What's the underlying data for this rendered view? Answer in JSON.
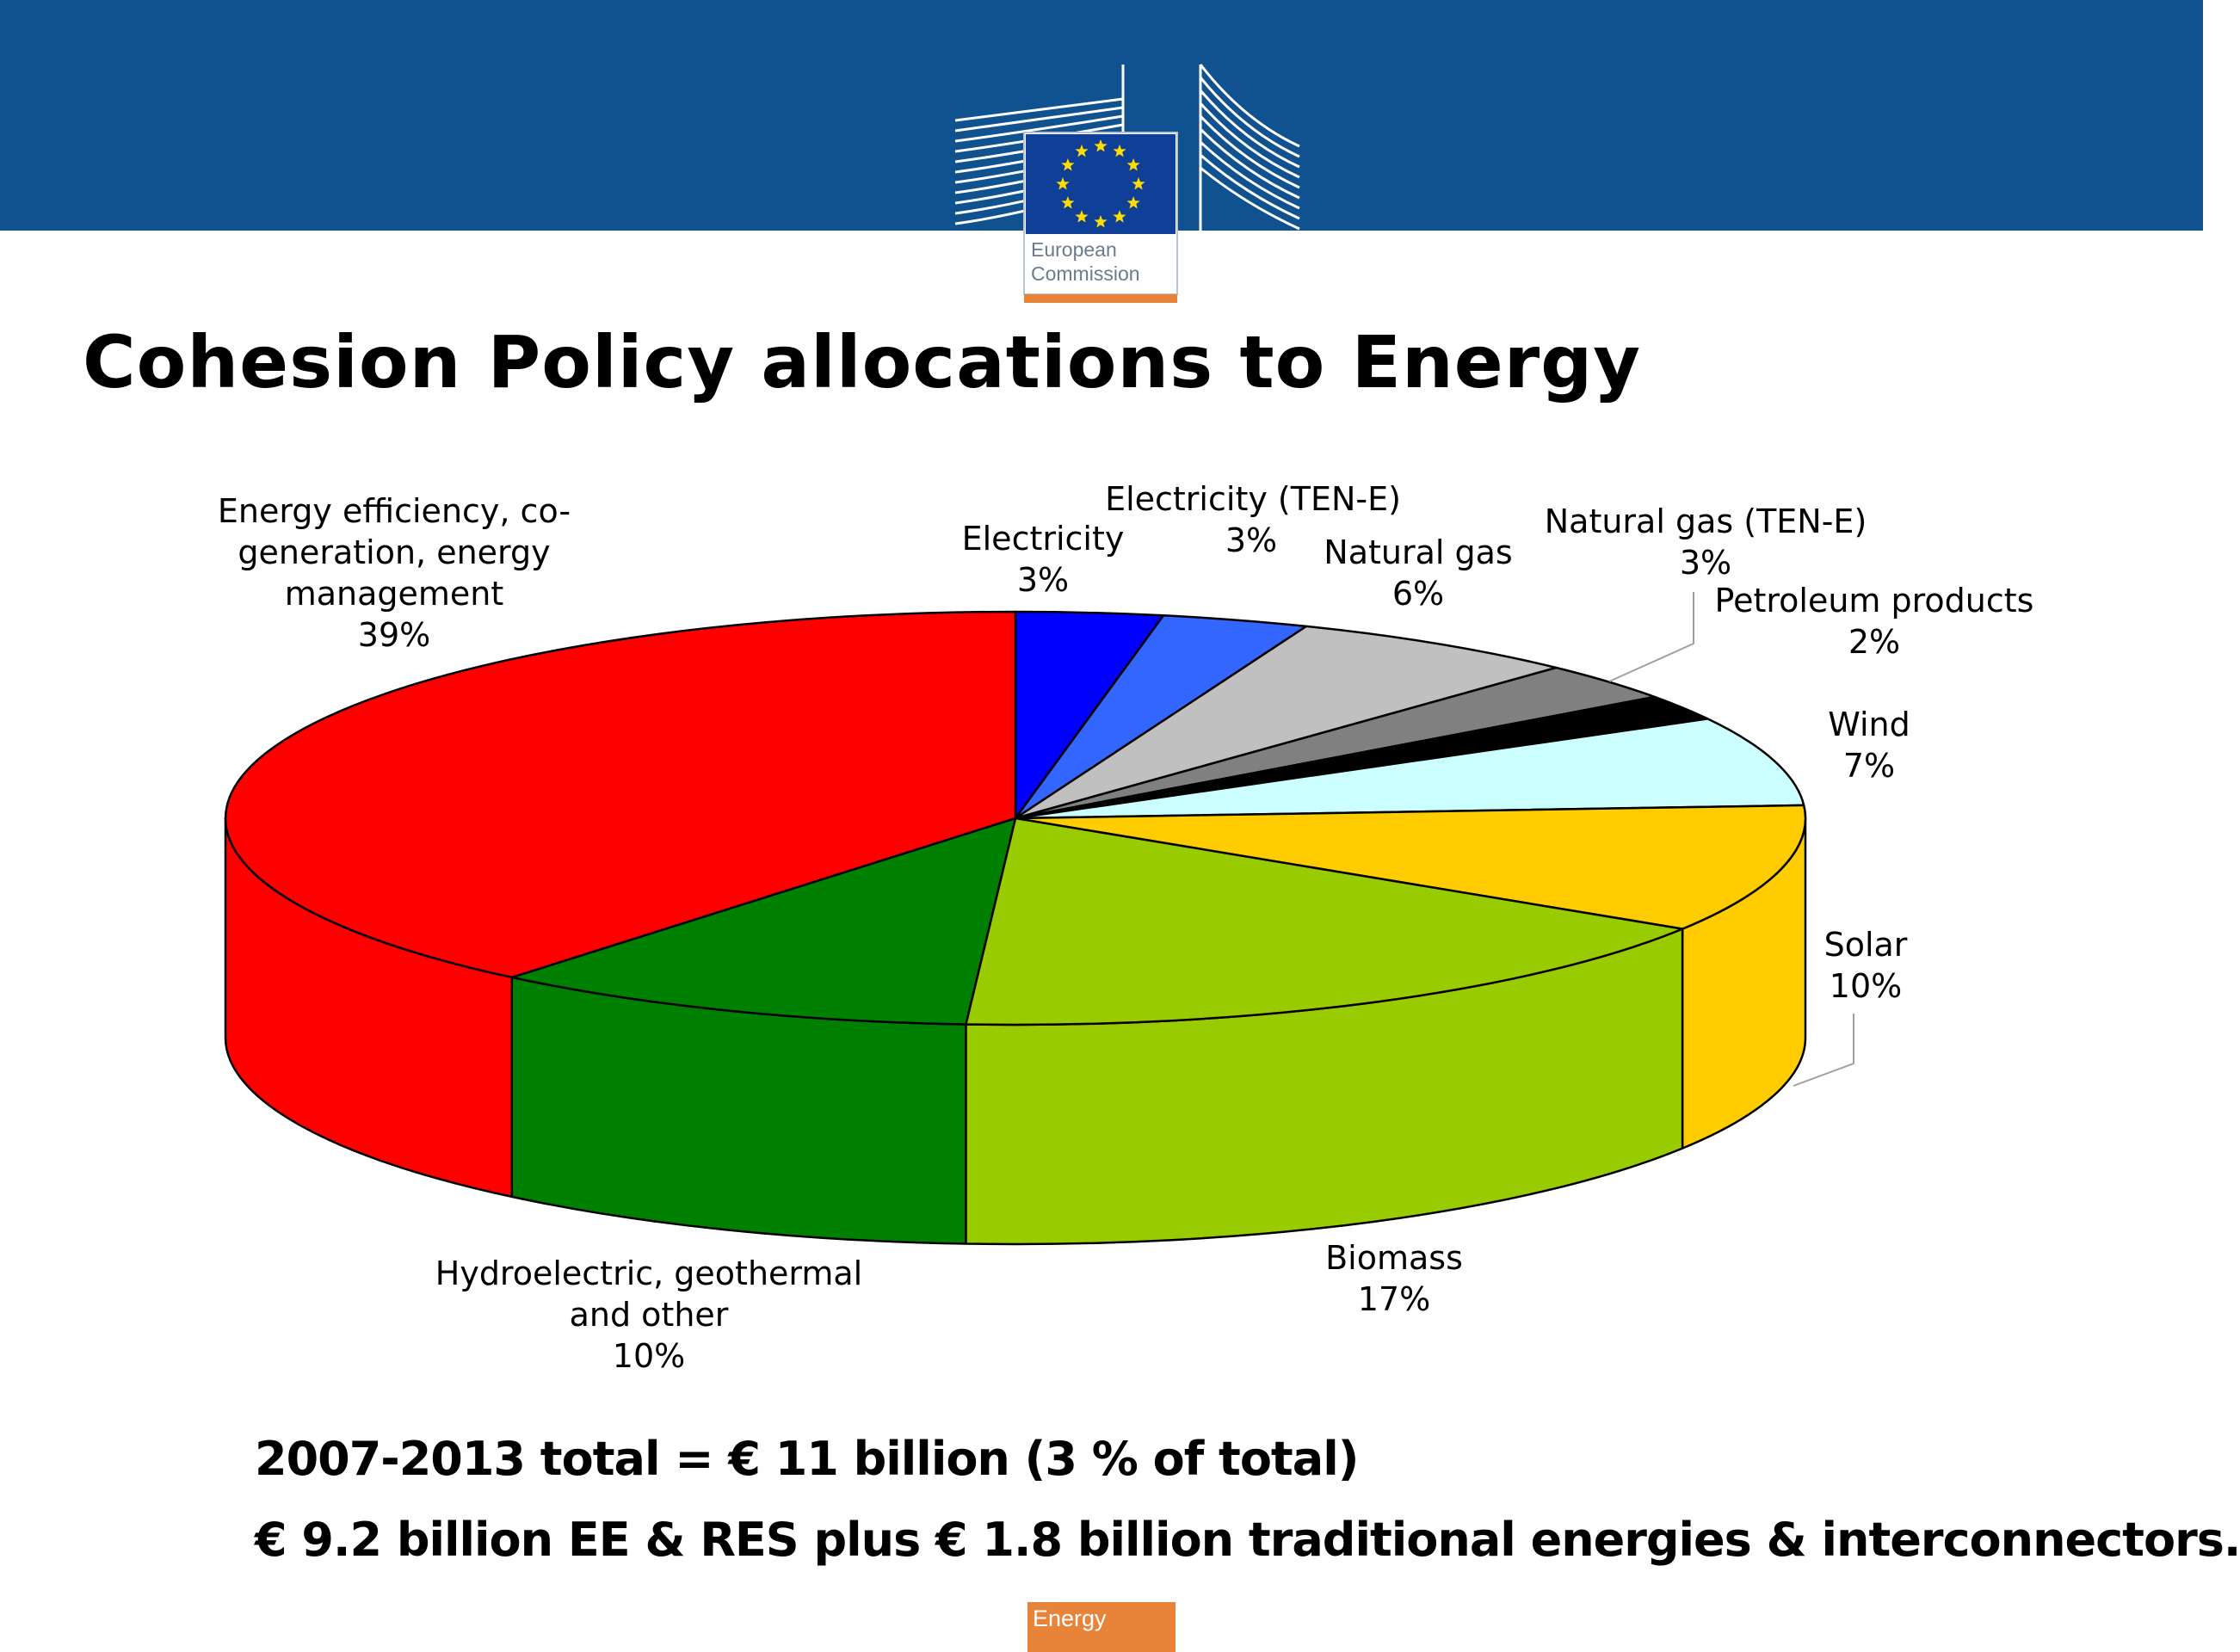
{
  "header": {
    "logo_lines": [
      "European",
      "Commission"
    ]
  },
  "title": "Cohesion Policy allocations to Energy",
  "chart_data": {
    "type": "pie",
    "style": "3d",
    "slices": [
      {
        "name": "Electricity",
        "value": 3,
        "label": "3%",
        "color": "#0000ff"
      },
      {
        "name": "Electricity (TEN-E)",
        "value": 3,
        "label": "3%",
        "color": "#3366ff"
      },
      {
        "name": "Natural gas",
        "value": 6,
        "label": "6%",
        "color": "#c0c0c0"
      },
      {
        "name": "Natural gas (TEN-E)",
        "value": 3,
        "label": "3%",
        "color": "#808080"
      },
      {
        "name": "Petroleum products",
        "value": 2,
        "label": "2%",
        "color": "#000000"
      },
      {
        "name": "Wind",
        "value": 7,
        "label": "7%",
        "color": "#ccffff"
      },
      {
        "name": "Solar",
        "value": 10,
        "label": "10%",
        "color": "#ffcc00"
      },
      {
        "name": "Biomass",
        "value": 17,
        "label": "17%",
        "color": "#99cc00"
      },
      {
        "name": "Hydroelectric, geothermal and other",
        "value": 10,
        "label": "10%",
        "color": "#008000"
      },
      {
        "name": "Energy efficiency, co-generation, energy management",
        "value": 39,
        "label": "39%",
        "color": "#ff0000"
      }
    ],
    "labels": {
      "energy_efficiency": [
        "Energy efficiency, co-",
        "generation, energy",
        "management",
        "39%"
      ],
      "electricity": [
        "Electricity",
        "3%"
      ],
      "electricity_ten_e_name": "Electricity (TEN-E)",
      "electricity_ten_e_pct": "3%",
      "natural_gas": [
        "Natural gas",
        "6%"
      ],
      "natural_gas_ten_e": [
        "Natural gas (TEN-E)",
        "3%"
      ],
      "petroleum": [
        "Petroleum products",
        "2%"
      ],
      "wind": [
        "Wind",
        "7%"
      ],
      "solar": [
        "Solar",
        "10%"
      ],
      "biomass": [
        "Biomass",
        "17%"
      ],
      "hydro": [
        "Hydroelectric, geothermal",
        "and other",
        "10%"
      ]
    }
  },
  "footer": {
    "line1": "2007-2013 total = € 11 billion (3 % of total)",
    "line2": "€ 9.2 billion EE & RES plus € 1.8 billion traditional energies & interconnectors.",
    "tab_label": "Energy"
  },
  "colors": {
    "header_blue": "#10528f",
    "logo_blue": "#0f3f96",
    "star_yellow": "#ffdd00",
    "accent_orange": "#e8833a"
  }
}
